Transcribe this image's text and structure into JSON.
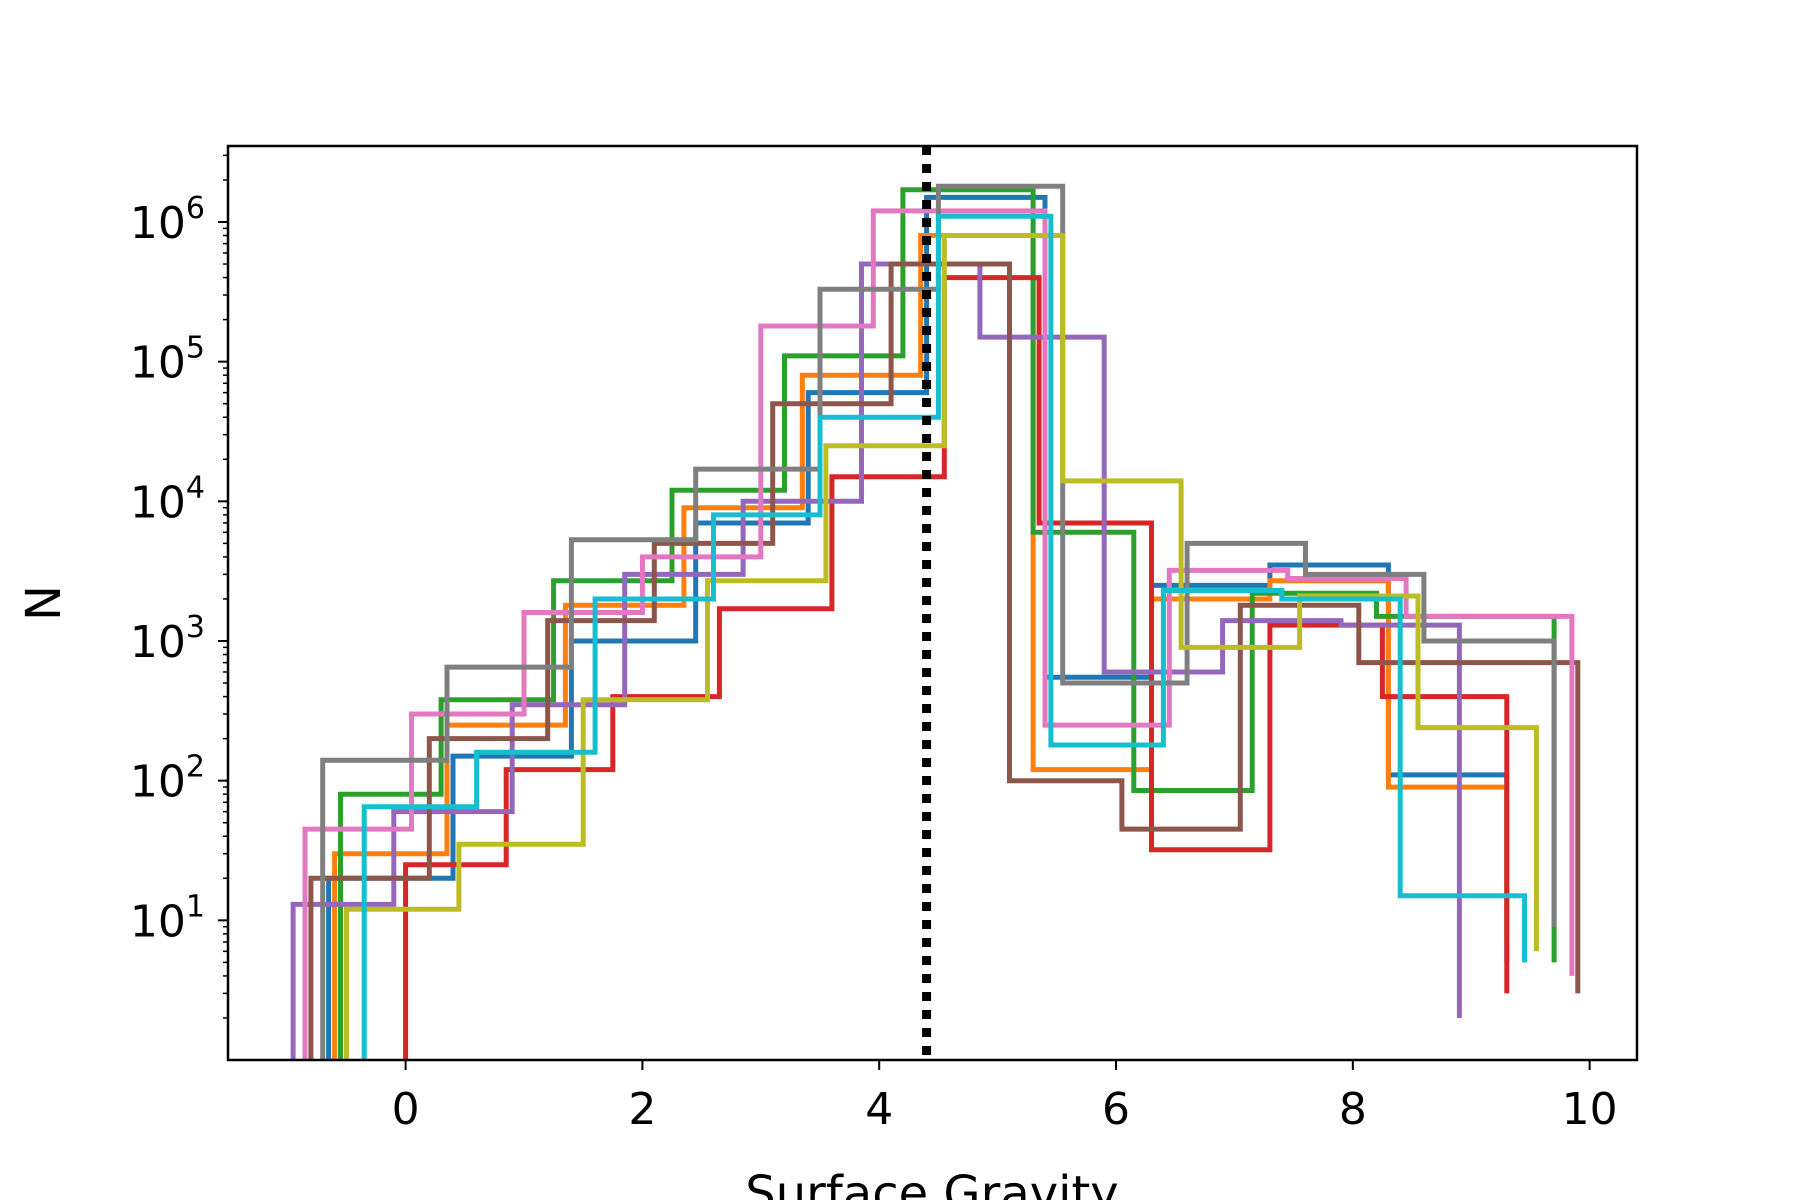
{
  "chart_data": {
    "type": "histogram",
    "title": "",
    "xlabel": "Surface Gravity",
    "ylabel": "N",
    "x_scale": "linear",
    "y_scale": "log",
    "xlim": [
      -1.5,
      10.4
    ],
    "ylim": [
      1,
      3500000
    ],
    "xticks": [
      0,
      2,
      4,
      6,
      8,
      10
    ],
    "yticks": [
      {
        "base": "10",
        "exp": "1",
        "value": 10
      },
      {
        "base": "10",
        "exp": "2",
        "value": 100
      },
      {
        "base": "10",
        "exp": "3",
        "value": 1000
      },
      {
        "base": "10",
        "exp": "4",
        "value": 10000
      },
      {
        "base": "10",
        "exp": "5",
        "value": 100000
      },
      {
        "base": "10",
        "exp": "6",
        "value": 1000000
      }
    ],
    "grid": false,
    "legend": false,
    "reference_lines": [
      {
        "orientation": "vertical",
        "x": 4.4,
        "style": "dotted",
        "color": "#000000"
      }
    ],
    "series": [
      {
        "color": "#1f77b4",
        "edges": [
          -0.65,
          0.4,
          1.4,
          2.45,
          3.4,
          4.4,
          5.4,
          6.3,
          7.3,
          8.3,
          9.3
        ],
        "counts": [
          20,
          150,
          1000,
          7000,
          60000,
          1500000,
          550,
          2500,
          3500,
          110,
          5
        ]
      },
      {
        "color": "#ff7f0e",
        "edges": [
          -0.6,
          0.35,
          1.35,
          2.35,
          3.35,
          4.35,
          5.3,
          6.3,
          7.3,
          8.3,
          9.3
        ],
        "counts": [
          30,
          250,
          1800,
          9000,
          80000,
          800000,
          120,
          2000,
          2700,
          90,
          7
        ]
      },
      {
        "color": "#2ca02c",
        "edges": [
          -0.55,
          0.3,
          1.25,
          2.25,
          3.2,
          4.2,
          5.3,
          6.15,
          7.15,
          8.2,
          9.7
        ],
        "counts": [
          80,
          380,
          2700,
          12000,
          110000,
          1700000,
          6000,
          85,
          2200,
          1500,
          5
        ]
      },
      {
        "color": "#d62728",
        "edges": [
          0.0,
          0.85,
          1.75,
          2.65,
          3.6,
          4.55,
          5.35,
          6.3,
          7.3,
          8.25,
          9.3
        ],
        "counts": [
          25,
          120,
          400,
          1700,
          15000,
          400000,
          7000,
          32,
          1300,
          400,
          3
        ]
      },
      {
        "color": "#9467bd",
        "edges": [
          -0.95,
          -0.1,
          0.9,
          1.85,
          2.85,
          3.85,
          4.85,
          5.9,
          6.9,
          7.9,
          8.9
        ],
        "counts": [
          13,
          60,
          350,
          3000,
          10000,
          500000,
          150000,
          600,
          1400,
          1300,
          2
        ]
      },
      {
        "color": "#8c564b",
        "edges": [
          -0.8,
          0.2,
          1.2,
          2.1,
          3.1,
          4.1,
          5.1,
          6.05,
          7.05,
          8.05,
          9.9
        ],
        "counts": [
          20,
          200,
          1400,
          5000,
          50000,
          500000,
          100,
          45,
          1800,
          700,
          3
        ]
      },
      {
        "color": "#e377c2",
        "edges": [
          -0.85,
          0.05,
          1.0,
          2.0,
          3.0,
          3.95,
          5.4,
          6.45,
          7.45,
          8.45,
          9.85
        ],
        "counts": [
          45,
          300,
          1600,
          4000,
          180000,
          1200000,
          250,
          3200,
          2800,
          1500,
          4
        ]
      },
      {
        "color": "#7f7f7f",
        "edges": [
          -0.7,
          0.35,
          1.4,
          2.45,
          3.5,
          4.5,
          5.55,
          6.6,
          7.6,
          8.6,
          9.7
        ],
        "counts": [
          140,
          650,
          5300,
          17000,
          330000,
          1800000,
          500,
          5000,
          3000,
          1000,
          9
        ]
      },
      {
        "color": "#bcbd22",
        "edges": [
          -0.5,
          0.45,
          1.5,
          2.55,
          3.55,
          4.55,
          5.55,
          6.55,
          7.55,
          8.55,
          9.55
        ],
        "counts": [
          12,
          35,
          380,
          2700,
          25000,
          800000,
          14000,
          900,
          2100,
          240,
          6
        ]
      },
      {
        "color": "#17becf",
        "edges": [
          -0.35,
          0.6,
          1.6,
          2.6,
          3.5,
          4.5,
          5.45,
          6.4,
          7.4,
          8.4,
          9.45
        ],
        "counts": [
          65,
          160,
          2000,
          8000,
          40000,
          1100000,
          180,
          2300,
          2000,
          15,
          5
        ]
      }
    ]
  }
}
